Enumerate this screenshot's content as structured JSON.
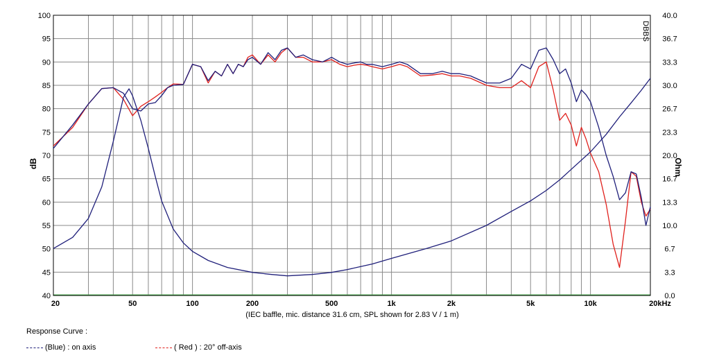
{
  "chart_data": {
    "type": "line",
    "xscale": "log",
    "xlim": [
      20,
      20000
    ],
    "ylim_left": [
      40,
      100
    ],
    "ylim_right": [
      0.0,
      40.0
    ],
    "ylabel_left": "dB",
    "ylabel_right": "Ohm",
    "xlabel": "(IEC baffle, mic. distance 31.6 cm, SPL shown for 2.83 V / 1 m)",
    "watermark": "DBBS",
    "grid": true,
    "x_tick_labels": [
      {
        "v": 20,
        "label": "20"
      },
      {
        "v": 50,
        "label": "50"
      },
      {
        "v": 100,
        "label": "100"
      },
      {
        "v": 200,
        "label": "200"
      },
      {
        "v": 500,
        "label": "500"
      },
      {
        "v": 1000,
        "label": "1k"
      },
      {
        "v": 2000,
        "label": "2k"
      },
      {
        "v": 5000,
        "label": "5k"
      },
      {
        "v": 10000,
        "label": "10k"
      },
      {
        "v": 20000,
        "label": "20kHz"
      }
    ],
    "y_left_ticks": [
      "40",
      "45",
      "50",
      "55",
      "60",
      "65",
      "70",
      "75",
      "80",
      "85",
      "90",
      "95",
      "100"
    ],
    "y_right_ticks": [
      "0.0",
      "3.3",
      "6.7",
      "10.0",
      "13.3",
      "16.7",
      "20.0",
      "23.3",
      "26.7",
      "30.0",
      "33.3",
      "36.7",
      "40.0"
    ],
    "series": [
      {
        "name": "(Blue)  : on axis",
        "color": "#1f1f7a",
        "axis": "left",
        "x": [
          20,
          25,
          30,
          35,
          40,
          45,
          50,
          55,
          60,
          65,
          70,
          75,
          80,
          90,
          100,
          110,
          120,
          130,
          140,
          150,
          160,
          170,
          180,
          190,
          200,
          220,
          240,
          260,
          280,
          300,
          330,
          360,
          400,
          450,
          500,
          550,
          600,
          650,
          700,
          750,
          800,
          900,
          1000,
          1100,
          1200,
          1400,
          1600,
          1800,
          2000,
          2200,
          2500,
          3000,
          3500,
          4000,
          4500,
          5000,
          5500,
          6000,
          6500,
          7000,
          7500,
          8000,
          8500,
          9000,
          9500,
          10000,
          11000,
          12000,
          13000,
          14000,
          15000,
          16000,
          17000,
          18000,
          19000,
          20000
        ],
        "values": [
          71.5,
          76.5,
          81.0,
          84.3,
          84.5,
          83.3,
          80.0,
          79.5,
          81.0,
          81.3,
          82.8,
          84.5,
          85.0,
          85.2,
          89.5,
          89.0,
          86.0,
          88.0,
          87.0,
          89.5,
          87.5,
          89.5,
          89.0,
          90.5,
          91.0,
          89.5,
          92.0,
          90.5,
          92.5,
          93.0,
          91.0,
          91.5,
          90.5,
          90.0,
          91.0,
          90.0,
          89.5,
          89.8,
          90.0,
          89.5,
          89.5,
          89.0,
          89.5,
          90.0,
          89.5,
          87.5,
          87.5,
          88.0,
          87.5,
          87.5,
          87.0,
          85.5,
          85.5,
          86.5,
          89.5,
          88.5,
          92.5,
          93.0,
          90.5,
          87.5,
          88.5,
          85.5,
          81.5,
          84.0,
          83.0,
          81.5,
          76.0,
          70.0,
          65.5,
          60.5,
          62.0,
          66.5,
          66.0,
          61.0,
          55.0,
          59.0
        ]
      },
      {
        "name": "( Red ) : 20° off-axis",
        "color": "#e0201c",
        "axis": "left",
        "x": [
          20,
          25,
          30,
          35,
          40,
          45,
          50,
          55,
          60,
          65,
          70,
          75,
          80,
          90,
          100,
          110,
          120,
          130,
          140,
          150,
          160,
          170,
          180,
          190,
          200,
          220,
          240,
          260,
          280,
          300,
          330,
          360,
          400,
          450,
          500,
          550,
          600,
          650,
          700,
          750,
          800,
          900,
          1000,
          1100,
          1200,
          1400,
          1600,
          1800,
          2000,
          2200,
          2500,
          3000,
          3500,
          4000,
          4500,
          5000,
          5500,
          6000,
          6500,
          7000,
          7500,
          8000,
          8500,
          9000,
          9500,
          10000,
          11000,
          12000,
          13000,
          14000,
          15000,
          16000,
          17000,
          18000,
          19000,
          20000
        ],
        "values": [
          72.0,
          76.0,
          81.0,
          84.3,
          84.5,
          82.0,
          78.5,
          80.5,
          81.5,
          82.5,
          83.5,
          84.5,
          85.3,
          85.2,
          89.5,
          89.0,
          85.5,
          88.0,
          87.0,
          89.5,
          87.5,
          89.5,
          89.0,
          91.0,
          91.5,
          89.5,
          91.5,
          90.0,
          92.0,
          93.0,
          91.0,
          91.0,
          90.0,
          90.0,
          90.5,
          89.5,
          89.0,
          89.3,
          89.5,
          89.3,
          89.0,
          88.5,
          89.0,
          89.5,
          89.0,
          87.0,
          87.2,
          87.5,
          87.0,
          87.0,
          86.5,
          85.0,
          84.5,
          84.5,
          86.0,
          84.5,
          89.0,
          90.0,
          84.0,
          77.5,
          79.0,
          76.5,
          72.0,
          76.0,
          73.5,
          70.5,
          66.5,
          59.5,
          51.0,
          46.0,
          56.0,
          66.5,
          65.5,
          60.0,
          57.0,
          58.5
        ]
      },
      {
        "name": "Impedance",
        "color": "#1f1f7a",
        "axis": "right",
        "x": [
          20,
          25,
          30,
          35,
          40,
          45,
          48,
          50,
          55,
          60,
          65,
          70,
          80,
          90,
          100,
          120,
          150,
          200,
          250,
          300,
          400,
          500,
          600,
          800,
          1000,
          1500,
          2000,
          3000,
          4000,
          5000,
          6000,
          7000,
          8000,
          10000,
          12000,
          14000,
          16000,
          18000,
          20000
        ],
        "values": [
          6.7,
          8.3,
          11.0,
          15.5,
          22.0,
          28.3,
          29.5,
          28.5,
          25.0,
          21.0,
          17.0,
          13.5,
          9.5,
          7.5,
          6.3,
          5.0,
          4.0,
          3.3,
          3.0,
          2.8,
          3.0,
          3.3,
          3.7,
          4.5,
          5.3,
          6.7,
          7.8,
          10.0,
          12.0,
          13.5,
          15.0,
          16.5,
          18.0,
          20.5,
          23.0,
          25.5,
          27.5,
          29.3,
          31.0
        ]
      }
    ]
  },
  "legend": {
    "title": "Response Curve :",
    "items": [
      {
        "label": "(Blue)  : on axis",
        "color": "#1f1f7a"
      },
      {
        "label": "( Red ) : 20° off-axis",
        "color": "#e0201c"
      }
    ]
  }
}
